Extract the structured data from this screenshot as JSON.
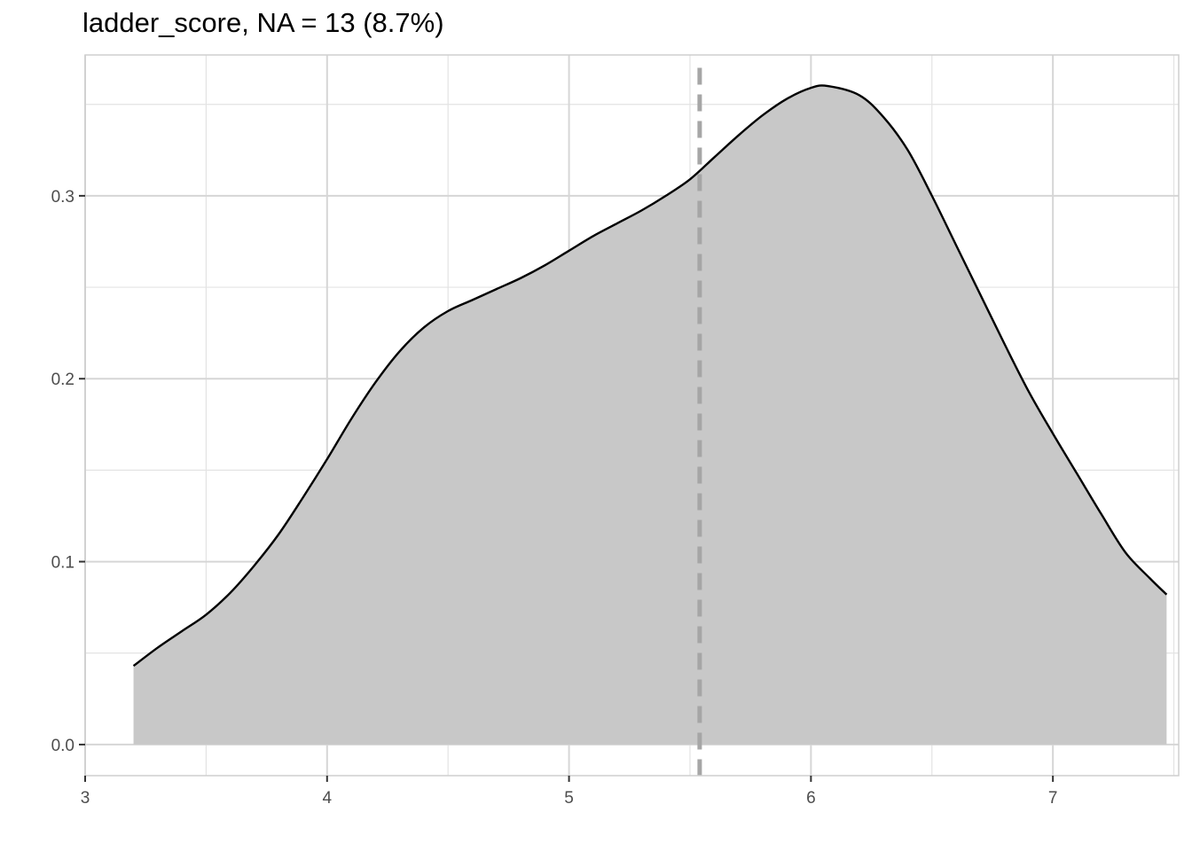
{
  "chart_data": {
    "type": "area",
    "title": "ladder_score, NA = 13 (8.7%)",
    "xlabel": "",
    "ylabel": "",
    "xlim": [
      3.0,
      7.52
    ],
    "ylim": [
      -0.017,
      0.377
    ],
    "x_ticks": [
      3,
      4,
      5,
      6,
      7
    ],
    "y_ticks": [
      0.0,
      0.1,
      0.2,
      0.3
    ],
    "x_tick_labels": [
      "3",
      "4",
      "5",
      "6",
      "7"
    ],
    "y_tick_labels": [
      "0.0",
      "0.1",
      "0.2",
      "0.3"
    ],
    "grid": true,
    "legend": "none",
    "reference_line": {
      "x": 5.54,
      "style": "dashed",
      "color": "#a6a6a6"
    },
    "fill_color": "#c8c8c8",
    "line_color": "#000000",
    "series": [
      {
        "x": [
          3.2,
          3.3,
          3.4,
          3.5,
          3.6,
          3.7,
          3.8,
          3.9,
          4.0,
          4.1,
          4.2,
          4.3,
          4.4,
          4.5,
          4.6,
          4.7,
          4.8,
          4.9,
          5.0,
          5.1,
          5.2,
          5.3,
          5.4,
          5.5,
          5.6,
          5.7,
          5.8,
          5.9,
          6.0,
          6.07,
          6.2,
          6.3,
          6.4,
          6.5,
          6.6,
          6.7,
          6.8,
          6.9,
          7.0,
          7.1,
          7.2,
          7.3,
          7.4,
          7.47
        ],
        "y": [
          0.043,
          0.053,
          0.062,
          0.071,
          0.083,
          0.098,
          0.115,
          0.135,
          0.156,
          0.178,
          0.198,
          0.215,
          0.228,
          0.237,
          0.243,
          0.249,
          0.255,
          0.262,
          0.27,
          0.278,
          0.285,
          0.292,
          0.3,
          0.309,
          0.321,
          0.333,
          0.344,
          0.353,
          0.359,
          0.36,
          0.355,
          0.343,
          0.325,
          0.3,
          0.273,
          0.246,
          0.219,
          0.193,
          0.17,
          0.148,
          0.126,
          0.105,
          0.091,
          0.082
        ]
      }
    ]
  }
}
